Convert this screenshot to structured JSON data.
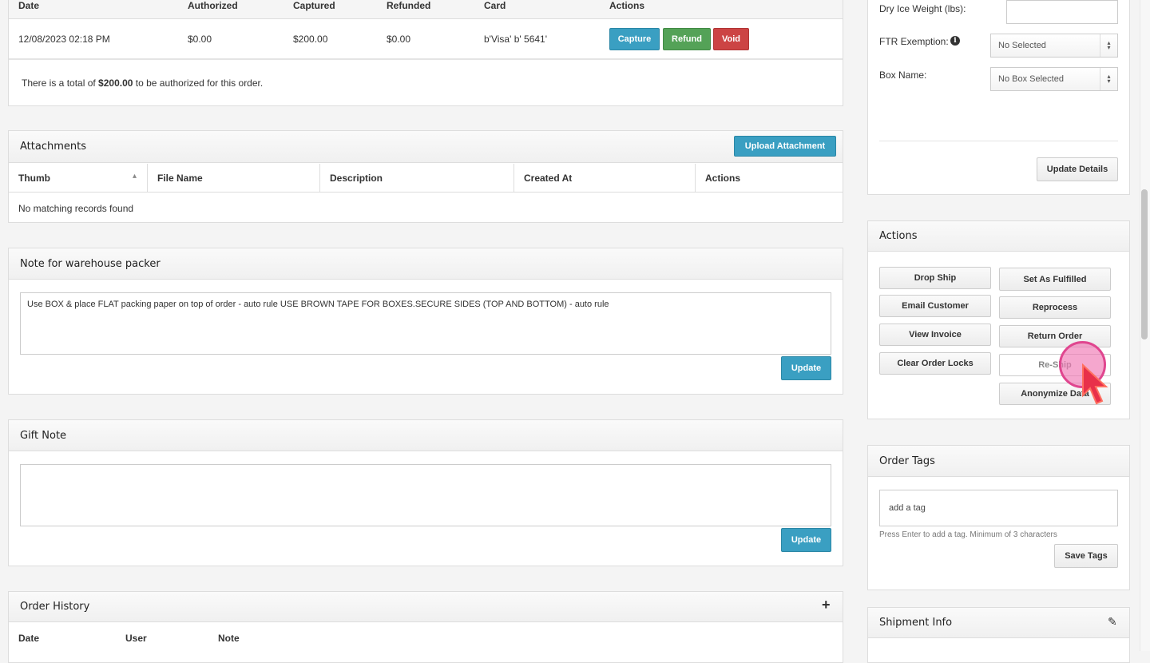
{
  "payments": {
    "headers": [
      "Date",
      "Authorized",
      "Captured",
      "Refunded",
      "Card",
      "Actions"
    ],
    "row": {
      "date": "12/08/2023 02:18 PM",
      "authorized": "$0.00",
      "captured": "$200.00",
      "refunded": "$0.00",
      "card": "b'Visa' b' 5641'"
    },
    "buttons": {
      "capture": "Capture",
      "refund": "Refund",
      "void": "Void"
    },
    "total_prefix": "There is a total of ",
    "total_amount": "$200.00",
    "total_suffix": " to be authorized for this order."
  },
  "attachments": {
    "title": "Attachments",
    "upload": "Upload Attachment",
    "headers": [
      "Thumb",
      "File Name",
      "Description",
      "Created At",
      "Actions"
    ],
    "empty": "No matching records found"
  },
  "packer_note": {
    "title": "Note for warehouse packer",
    "value": "Use BOX & place FLAT packing paper on top of order - auto rule USE BROWN TAPE FOR BOXES.SECURE SIDES (TOP AND BOTTOM) - auto rule",
    "update": "Update"
  },
  "gift_note": {
    "title": "Gift Note",
    "value": "",
    "update": "Update"
  },
  "order_history": {
    "title": "Order History",
    "headers": [
      "Date",
      "User",
      "Note"
    ]
  },
  "details": {
    "dry_ice_label": "Dry Ice Weight (lbs):",
    "dry_ice_value": "",
    "ftr_label": "FTR Exemption:",
    "ftr_value": "No Selected",
    "box_label": "Box Name:",
    "box_value": "No Box Selected",
    "update": "Update Details"
  },
  "actions": {
    "title": "Actions",
    "left": [
      "Drop Ship",
      "Email Customer",
      "View Invoice",
      "Clear Order Locks"
    ],
    "right": [
      "Set As Fulfilled",
      "Reprocess",
      "Return Order",
      "Re-Ship",
      "Anonymize Data"
    ]
  },
  "tags": {
    "title": "Order Tags",
    "placeholder": "add a tag",
    "help": "Press Enter to add a tag. Minimum of 3 characters",
    "save": "Save Tags"
  },
  "shipment": {
    "title": "Shipment Info"
  }
}
